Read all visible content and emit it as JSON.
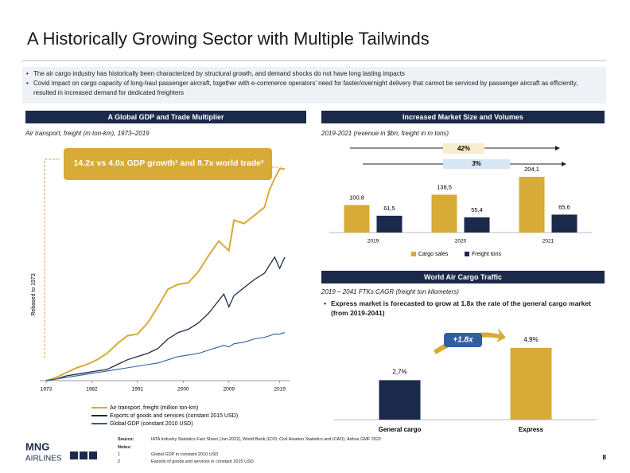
{
  "header": {
    "title": "A Historically Growing Sector with Multiple Tailwinds"
  },
  "bullets": [
    "The air cargo industry has historically been characterized by structural growth, and demand shocks do not have long lasting impacts",
    "Covid impact on cargo capacity of long-haul passenger aircraft, together with e-commerce operators’ need for faster/overnight delivery that cannot be serviced by passenger aircraft as efficiently, resulted in increased demand for dedicated freighters"
  ],
  "chart_data": [
    {
      "type": "line",
      "title": "A Global GDP and Trade Multiplier",
      "subtitle": "Air transport, freight (m ton-km), 1973–2019",
      "annotation": "14.2x vs 4.0x GDP growth¹ and 8.7x world trade²",
      "y_label": "Rebased to 1973",
      "x": [
        1973,
        1975,
        1977,
        1979,
        1981,
        1983,
        1985,
        1987,
        1989,
        1991,
        1993,
        1995,
        1997,
        1999,
        2001,
        2003,
        2005,
        2007,
        2008,
        2009,
        2010,
        2012,
        2014,
        2016,
        2017,
        2018,
        2019,
        2020
      ],
      "series": [
        {
          "name": "Air transport, freight (million ton-km)",
          "color": "#d8aa38",
          "values": [
            1.0,
            1.2,
            1.5,
            1.8,
            2.0,
            2.3,
            2.7,
            3.3,
            3.8,
            3.9,
            4.6,
            5.6,
            6.7,
            7.0,
            7.1,
            7.8,
            8.8,
            9.7,
            9.4,
            9.1,
            11.0,
            10.8,
            11.3,
            11.8,
            12.9,
            13.6,
            14.2,
            14.2
          ]
        },
        {
          "name": "Exports of goods and services (constant 2015 USD)",
          "color": "#1b2a4a",
          "values": [
            1.0,
            1.1,
            1.3,
            1.4,
            1.5,
            1.6,
            1.7,
            2.0,
            2.3,
            2.5,
            2.7,
            3.0,
            3.6,
            4.0,
            4.2,
            4.6,
            5.2,
            6.0,
            6.4,
            5.6,
            6.3,
            6.8,
            7.3,
            7.7,
            8.2,
            8.7,
            8.0,
            8.7
          ]
        },
        {
          "name": "Global GDP (constant 2010 USD)",
          "color": "#2f5f9e",
          "values": [
            1.0,
            1.1,
            1.2,
            1.3,
            1.4,
            1.5,
            1.6,
            1.7,
            1.8,
            1.9,
            2.0,
            2.1,
            2.3,
            2.5,
            2.6,
            2.7,
            2.9,
            3.1,
            3.2,
            3.1,
            3.3,
            3.4,
            3.6,
            3.7,
            3.8,
            3.9,
            3.9,
            4.0
          ]
        }
      ],
      "xlim": [
        1973,
        2020
      ],
      "xticks": [
        1973,
        1982,
        1991,
        2000,
        2009,
        2019
      ],
      "ylim": [
        1,
        15
      ],
      "legend": "bottom"
    },
    {
      "type": "bar",
      "title": "Increased Market Size and Volumes",
      "subtitle": "2019-2021 (revenue in $bn, freight in m tons)",
      "annotations": [
        "42%",
        "3%"
      ],
      "categories": [
        "2019",
        "2020",
        "2021"
      ],
      "series": [
        {
          "name": "Cargo sales",
          "color": "#d8aa38",
          "values": [
            100.8,
            138.5,
            204.1
          ],
          "value_labels": [
            "100,8",
            "138,5",
            "204,1"
          ]
        },
        {
          "name": "Freight tons",
          "color": "#1b2a4a",
          "values": [
            61.5,
            55.4,
            65.6
          ],
          "value_labels": [
            "61,5",
            "55,4",
            "65,6"
          ]
        }
      ],
      "legend": "bottom"
    },
    {
      "type": "bar",
      "title": "World Air Cargo Traffic",
      "subtitle": "2019 – 2041 FTKs CAGR (freight ton kilometers)",
      "note": "Express market is forecasted to grow at 1.8x the rate of the general cargo market (from 2019-2041)",
      "annotations": [
        "+1.8x"
      ],
      "categories": [
        "General cargo",
        "Express"
      ],
      "values": [
        2.7,
        4.9
      ],
      "value_labels": [
        "2,7%",
        "4,9%"
      ],
      "colors": [
        "#1b2a4a",
        "#d8aa38"
      ]
    }
  ],
  "footer": {
    "logo": "MNG",
    "logo_sub": "AIRLINES",
    "source_label": "Source:",
    "source": "IATA Industry Statistics Fact Sheet (Jun-2022), World Bank (ICIO, Civil Aviation Statistics and ICAO), Airbus GMF 2022",
    "notes_label": "Notes:",
    "notes": [
      {
        "number": "1",
        "text": "Global GDP in constant 2010 USD"
      },
      {
        "number": "2",
        "text": "Exports of goods and services in constant 2015 USD"
      }
    ],
    "page": "8"
  }
}
